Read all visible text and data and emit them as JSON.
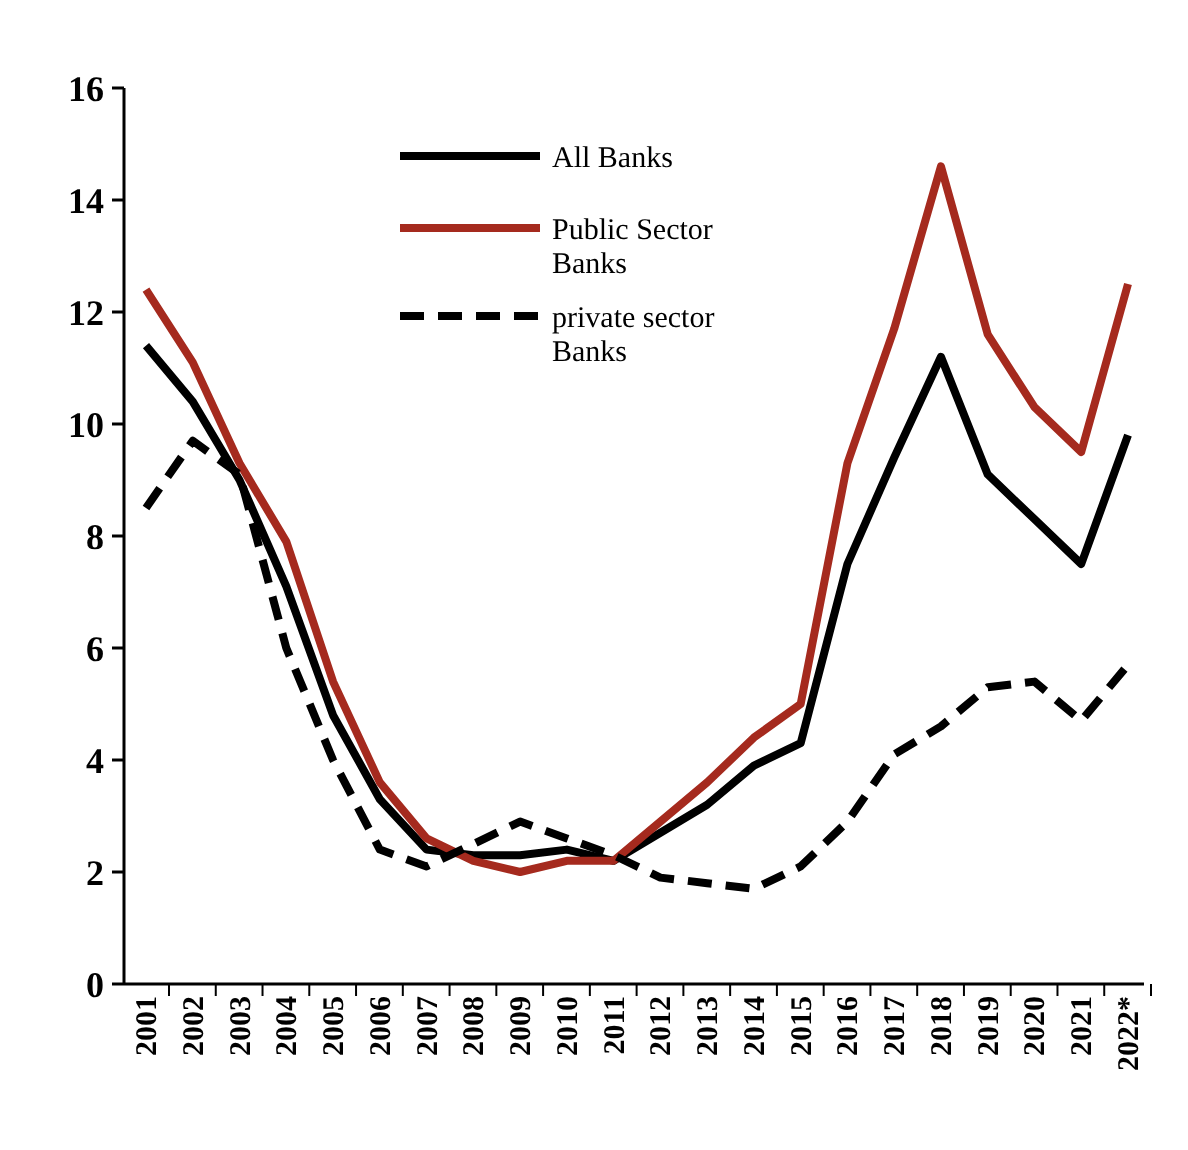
{
  "chart_data": {
    "type": "line",
    "categories": [
      "2001",
      "2002",
      "2003",
      "2004",
      "2005",
      "2006",
      "2007",
      "2008",
      "2009",
      "2010",
      "2011",
      "2012",
      "2013",
      "2014",
      "2015",
      "2016",
      "2017",
      "2018",
      "2019",
      "2020",
      "2021",
      "2022*"
    ],
    "series": [
      {
        "name": "All Banks",
        "color": "#000000",
        "line_style": "solid",
        "values": [
          11.4,
          10.4,
          9.0,
          7.1,
          4.8,
          3.3,
          2.4,
          2.3,
          2.3,
          2.4,
          2.2,
          2.7,
          3.2,
          3.9,
          4.3,
          7.5,
          9.4,
          11.2,
          9.1,
          8.3,
          7.5,
          9.8
        ]
      },
      {
        "name": "Public Sector Banks",
        "color": "#a52a1e",
        "line_style": "solid",
        "values": [
          12.4,
          11.1,
          9.3,
          7.9,
          5.4,
          3.6,
          2.6,
          2.2,
          2.0,
          2.2,
          2.2,
          2.9,
          3.6,
          4.4,
          5.0,
          9.3,
          11.7,
          14.6,
          11.6,
          10.3,
          9.5,
          12.5
        ]
      },
      {
        "name": "private sector Banks",
        "color": "#000000",
        "line_style": "dashed",
        "values": [
          8.5,
          9.7,
          9.1,
          6.0,
          4.0,
          2.4,
          2.1,
          2.5,
          2.9,
          2.6,
          2.3,
          1.9,
          1.8,
          1.7,
          2.1,
          2.9,
          4.1,
          4.6,
          5.3,
          5.4,
          4.7,
          5.7
        ]
      }
    ],
    "ylim": [
      0,
      16
    ],
    "yticks": [
      0,
      2,
      4,
      6,
      8,
      10,
      12,
      14,
      16
    ],
    "grid": false,
    "legend": "top",
    "marker": "none"
  }
}
